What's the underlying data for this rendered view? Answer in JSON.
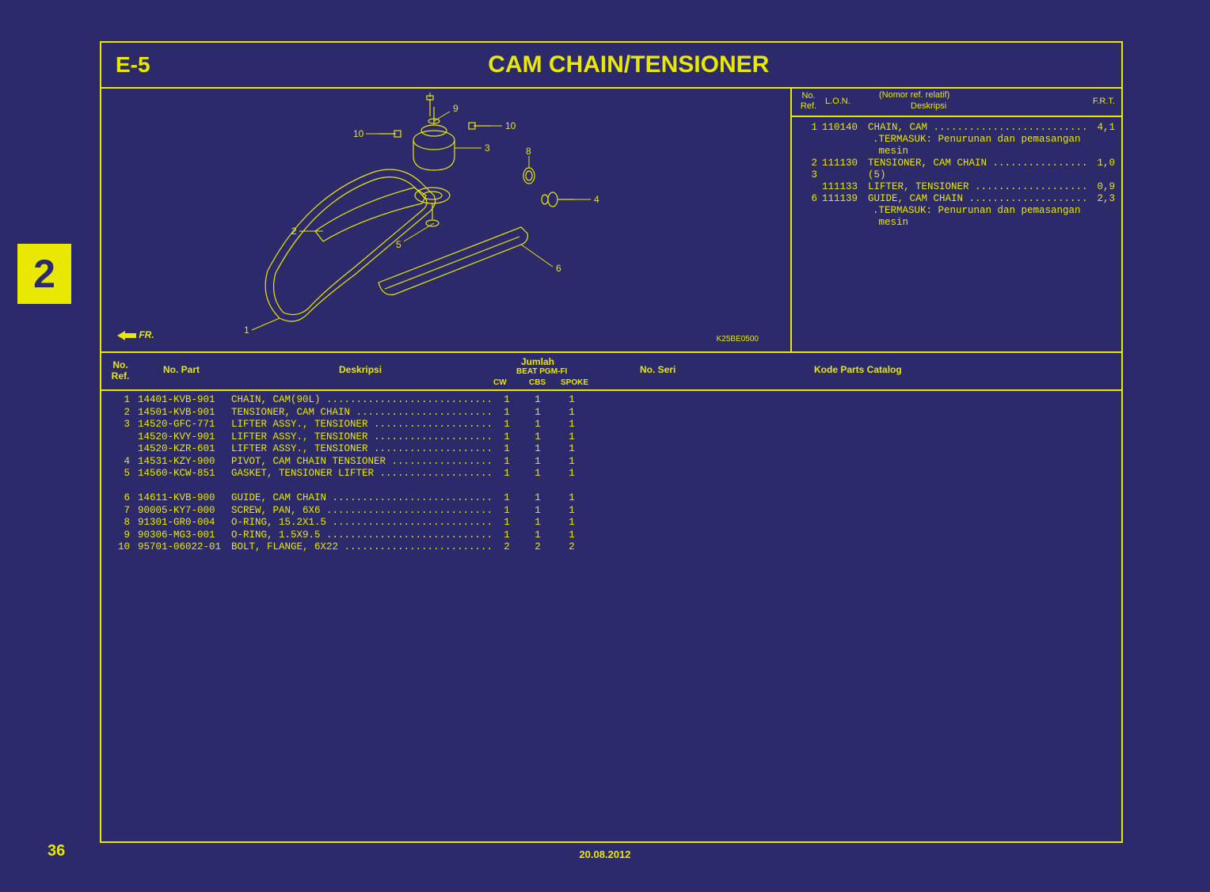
{
  "colors": {
    "background": "#2c2a6b",
    "accent": "#e8e800"
  },
  "page": {
    "section_number": "2",
    "page_number": "36",
    "footer_date": "20.08.2012"
  },
  "title": {
    "code": "E-5",
    "name": "CAM CHAIN/TENSIONER"
  },
  "diagram": {
    "code_label": "K25BE0500",
    "fr_label": "FR.",
    "callouts": [
      "1",
      "2",
      "3",
      "4",
      "5",
      "6",
      "7",
      "8",
      "9",
      "10",
      "10"
    ]
  },
  "ref_table": {
    "headers": {
      "no_ref": "No.\nRef.",
      "lon": "L.O.N.",
      "nomor": "(Nomor ref. relatif)",
      "deskripsi": "Deskripsi",
      "frt": "F.R.T."
    },
    "rows": [
      {
        "no": "1",
        "lon": "110140",
        "desc": "CHAIN, CAM ...........................",
        "frt": "4,1"
      },
      {
        "indent": ".TERMASUK: Penurunan dan pemasangan"
      },
      {
        "indent": " mesin"
      },
      {
        "no": "2",
        "lon": "111130",
        "desc": "TENSIONER, CAM CHAIN .................",
        "frt": "1,0"
      },
      {
        "no": "3",
        "lon": "",
        "desc": "(5)",
        "frt": ""
      },
      {
        "no": "",
        "lon": "111133",
        "desc": "LIFTER, TENSIONER ....................",
        "frt": "0,9"
      },
      {
        "no": "6",
        "lon": "111139",
        "desc": "GUIDE, CAM CHAIN .....................",
        "frt": "2,3"
      },
      {
        "indent": ".TERMASUK: Penurunan dan pemasangan"
      },
      {
        "indent": " mesin"
      }
    ]
  },
  "parts_table": {
    "headers": {
      "no_ref": "No.\nRef.",
      "no_part": "No. Part",
      "deskripsi": "Deskripsi",
      "jumlah": "Jumlah",
      "beat": "BEAT PGM-FI",
      "cw": "CW",
      "cbs": "CBS",
      "spoke": "SPOKE",
      "no_seri": "No. Seri",
      "kode": "Kode Parts Catalog"
    },
    "rows": [
      {
        "no": "1",
        "part": "14401-KVB-901",
        "desc": "CHAIN, CAM(90L) ............................",
        "cw": "1",
        "cbs": "1",
        "spoke": "1"
      },
      {
        "no": "2",
        "part": "14501-KVB-901",
        "desc": "TENSIONER, CAM CHAIN .......................",
        "cw": "1",
        "cbs": "1",
        "spoke": "1"
      },
      {
        "no": "3",
        "part": "14520-GFC-771",
        "desc": "LIFTER ASSY., TENSIONER ....................",
        "cw": "1",
        "cbs": "1",
        "spoke": "1"
      },
      {
        "no": "",
        "part": "14520-KVY-901",
        "desc": "LIFTER ASSY., TENSIONER ....................",
        "cw": "1",
        "cbs": "1",
        "spoke": "1"
      },
      {
        "no": "",
        "part": "14520-KZR-601",
        "desc": "LIFTER ASSY., TENSIONER ....................",
        "cw": "1",
        "cbs": "1",
        "spoke": "1"
      },
      {
        "no": "4",
        "part": "14531-KZY-900",
        "desc": "PIVOT, CAM CHAIN TENSIONER .................",
        "cw": "1",
        "cbs": "1",
        "spoke": "1"
      },
      {
        "no": "5",
        "part": "14560-KCW-851",
        "desc": "GASKET, TENSIONER LIFTER ...................",
        "cw": "1",
        "cbs": "1",
        "spoke": "1"
      },
      {
        "blank": true
      },
      {
        "no": "6",
        "part": "14611-KVB-900",
        "desc": "GUIDE, CAM CHAIN ...........................",
        "cw": "1",
        "cbs": "1",
        "spoke": "1"
      },
      {
        "no": "7",
        "part": "90005-KY7-000",
        "desc": "SCREW, PAN, 6X6 ............................",
        "cw": "1",
        "cbs": "1",
        "spoke": "1"
      },
      {
        "no": "8",
        "part": "91301-GR0-004",
        "desc": "O-RING, 15.2X1.5 ...........................",
        "cw": "1",
        "cbs": "1",
        "spoke": "1"
      },
      {
        "no": "9",
        "part": "90306-MG3-001",
        "desc": "O-RING, 1.5X9.5 ............................",
        "cw": "1",
        "cbs": "1",
        "spoke": "1"
      },
      {
        "no": "10",
        "part": "95701-06022-01",
        "desc": "BOLT, FLANGE, 6X22 .........................",
        "cw": "2",
        "cbs": "2",
        "spoke": "2"
      }
    ]
  }
}
